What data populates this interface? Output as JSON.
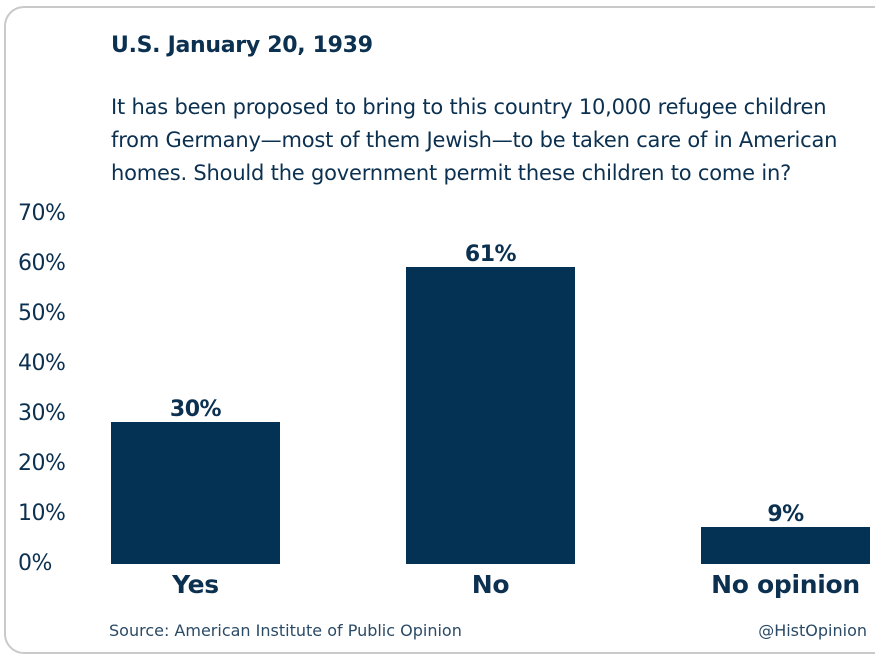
{
  "header": {
    "title": "U.S. January 20, 1939",
    "question": "It has been proposed to bring to this country 10,000 refugee children from Germany—most of them Jewish—to be taken care of in American homes. Should the government permit these children to come in?"
  },
  "footer": {
    "source": "Source: American Institute of Public Opinion",
    "handle": "@HistOpinion"
  },
  "colors": {
    "bar": "#033254",
    "text": "#0b3050"
  },
  "chart_data": {
    "type": "bar",
    "categories": [
      "Yes",
      "No",
      "No opinion"
    ],
    "values": [
      30,
      61,
      9
    ],
    "value_labels": [
      "30%",
      "61%",
      "9%"
    ],
    "title": "U.S. January 20, 1939",
    "xlabel": "",
    "ylabel": "",
    "ylim": [
      0,
      70
    ],
    "yticks": [
      0,
      10,
      20,
      30,
      40,
      50,
      60,
      70
    ],
    "ytick_labels": [
      "0%",
      "10%",
      "20%",
      "30%",
      "40%",
      "50%",
      "60%",
      "70%"
    ],
    "grid": false,
    "legend": "none"
  }
}
